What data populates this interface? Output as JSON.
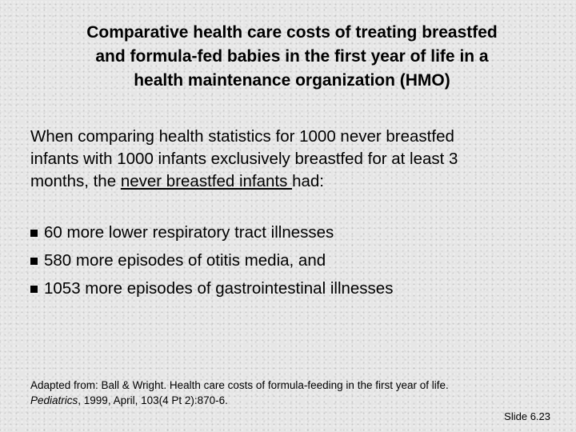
{
  "title": {
    "line1": "Comparative health care costs of treating breastfed",
    "line2": "and formula-fed babies in the first year of life in a",
    "line3": "health maintenance organization (HMO)"
  },
  "intro": {
    "line1": "When comparing health statistics for 1000 never breastfed",
    "line2": "infants with 1000 infants exclusively breastfed for at least 3",
    "line3_start": "months, the ",
    "line3_underlined": "never breastfed infants ",
    "line3_end": "had:"
  },
  "bullets": [
    "60 more lower respiratory tract illnesses",
    "580 more episodes of otitis media, and",
    "1053 more episodes of gastrointestinal illnesses"
  ],
  "citation": {
    "line1": "Adapted from: Ball & Wright. Health care costs of formula-feeding in the first year of life.",
    "journal": "Pediatrics",
    "line2_rest": ", 1999, April, 103(4 Pt 2):870-6."
  },
  "slide_number": "Slide 6.23"
}
